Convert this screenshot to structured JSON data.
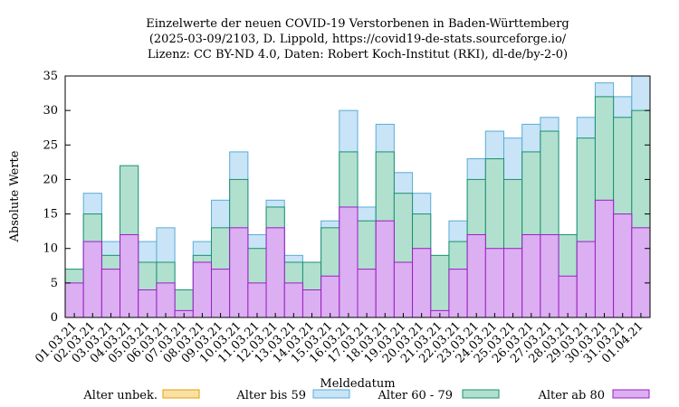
{
  "chart_data": {
    "type": "bar",
    "stacked": true,
    "title_lines": [
      "Einzelwerte der neuen COVID-19 Verstorbenen in Baden-Württemberg",
      "(2025-03-09/2103, D. Lippold, https://covid19-de-stats.sourceforge.io/",
      "Lizenz: CC BY-ND 4.0, Daten: Robert Koch-Institut (RKI), dl-de/by-2-0)"
    ],
    "xlabel": "Meldedatum",
    "ylabel": "Absolute Werte",
    "ylim": [
      0,
      35
    ],
    "yticks": [
      0,
      5,
      10,
      15,
      20,
      25,
      30,
      35
    ],
    "categories": [
      "01.03.21",
      "02.03.21",
      "03.03.21",
      "04.03.21",
      "05.03.21",
      "06.03.21",
      "07.03.21",
      "08.03.21",
      "09.03.21",
      "10.03.21",
      "11.03.21",
      "12.03.21",
      "13.03.21",
      "14.03.21",
      "15.03.21",
      "16.03.21",
      "17.03.21",
      "18.03.21",
      "19.03.21",
      "20.03.21",
      "21.03.21",
      "22.03.21",
      "23.03.21",
      "24.03.21",
      "25.03.21",
      "26.03.21",
      "27.03.21",
      "28.03.21",
      "29.03.21",
      "30.03.21",
      "31.03.21",
      "01.04.21"
    ],
    "series": [
      {
        "name": "Alter ab 80",
        "fill": "#dcaef2",
        "stroke": "#9a1fc2",
        "values": [
          5,
          11,
          7,
          12,
          4,
          5,
          1,
          8,
          7,
          13,
          5,
          13,
          5,
          4,
          6,
          16,
          7,
          14,
          8,
          10,
          1,
          7,
          12,
          10,
          10,
          12,
          12,
          6,
          11,
          17,
          15,
          13
        ]
      },
      {
        "name": "Alter 60 - 79",
        "fill": "#b2e0cf",
        "stroke": "#1a9070",
        "values": [
          2,
          4,
          2,
          10,
          4,
          3,
          3,
          1,
          6,
          7,
          5,
          3,
          3,
          4,
          7,
          8,
          7,
          10,
          10,
          5,
          8,
          4,
          8,
          13,
          10,
          12,
          15,
          6,
          15,
          15,
          14,
          17
        ]
      },
      {
        "name": "Alter bis 59",
        "fill": "#c8e4f6",
        "stroke": "#5aacd8",
        "values": [
          0,
          3,
          2,
          0,
          3,
          5,
          0,
          2,
          4,
          4,
          2,
          1,
          1,
          0,
          1,
          6,
          2,
          4,
          3,
          3,
          0,
          3,
          3,
          4,
          6,
          4,
          2,
          0,
          3,
          2,
          3,
          5
        ]
      },
      {
        "name": "Alter unbek.",
        "fill": "#fbe0a6",
        "stroke": "#e0a000",
        "values": [
          0,
          0,
          0,
          0,
          0,
          0,
          0,
          0,
          0,
          0,
          0,
          0,
          0,
          0,
          0,
          0,
          0,
          0,
          0,
          0,
          0,
          0,
          0,
          0,
          0,
          0,
          0,
          0,
          0,
          0,
          0,
          0
        ]
      }
    ],
    "legend": [
      "Alter unbek.",
      "Alter bis 59",
      "Alter 60 - 79",
      "Alter ab 80"
    ],
    "legend_position": "bottom"
  }
}
